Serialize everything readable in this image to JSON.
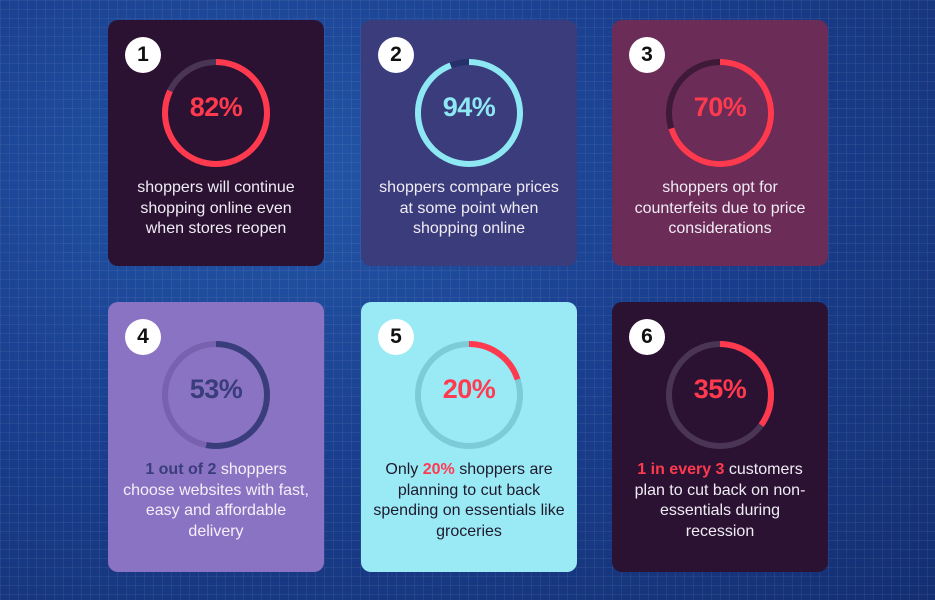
{
  "cards": [
    {
      "number": "1",
      "percent_label": "82%",
      "value": 82,
      "highlight": "",
      "description": "shoppers will continue shopping online even when stores reopen",
      "colors": {
        "card": "#2b1232",
        "ring": "#ff3a4f",
        "track": "#4a3556",
        "percent": "#ff3a4f",
        "text": "#f0ecf4",
        "highlight": ""
      }
    },
    {
      "number": "2",
      "percent_label": "94%",
      "value": 94,
      "highlight": "",
      "description": "shoppers compare prices at some point when shopping online",
      "colors": {
        "card": "#3b3c7c",
        "ring": "#8ee8f4",
        "track": "#26306a",
        "percent": "#8ee8f4",
        "text": "#f0ecf4",
        "highlight": ""
      }
    },
    {
      "number": "3",
      "percent_label": "70%",
      "value": 70,
      "highlight": "",
      "description": "shoppers opt for counterfeits due to price considerations",
      "colors": {
        "card": "#6b2c57",
        "ring": "#ff3a4f",
        "track": "#3e1a38",
        "percent": "#ff3a4f",
        "text": "#f0ecf4",
        "highlight": ""
      }
    },
    {
      "number": "4",
      "percent_label": "53%",
      "value": 53,
      "highlight": "1 out of 2",
      "description": " shoppers choose websites with fast, easy and affordable delivery",
      "colors": {
        "card": "#8a73c2",
        "ring": "#3a3d7c",
        "track": "#7862b0",
        "percent": "#3a3d7c",
        "text": "#f4f0fa",
        "highlight": "#3a3d7c"
      }
    },
    {
      "number": "5",
      "percent_label": "20%",
      "value": 20,
      "highlight": "",
      "description_prefix": "Only ",
      "highlight_mid": "20%",
      "description": " shoppers are planning to cut back spending on essentials like groceries",
      "colors": {
        "card": "#9aeaf6",
        "ring": "#ff3a4f",
        "track": "#7ccbd8",
        "percent": "#ff3a4f",
        "text": "#1e1a2c",
        "highlight": "#ff3a4f"
      }
    },
    {
      "number": "6",
      "percent_label": "35%",
      "value": 35,
      "highlight": "1 in every 3",
      "description": " customers plan to cut back on non-essentials during recession",
      "colors": {
        "card": "#2b1232",
        "ring": "#ff3a4f",
        "track": "#4a3556",
        "percent": "#ff3a4f",
        "text": "#f0ecf4",
        "highlight": "#ff3a4f"
      }
    }
  ]
}
